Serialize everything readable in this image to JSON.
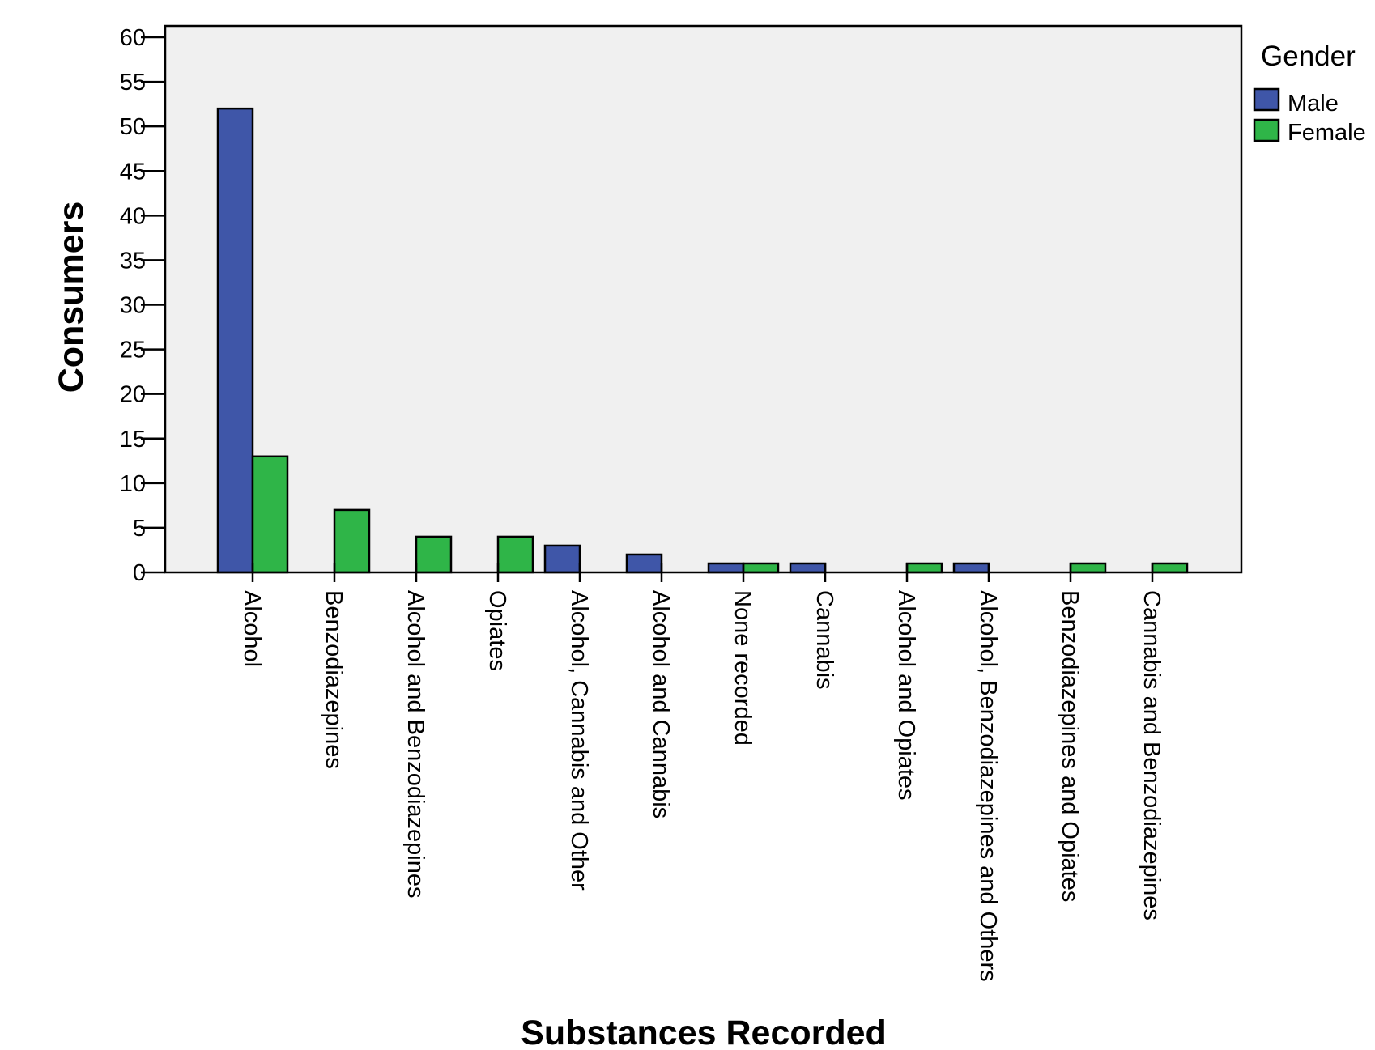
{
  "chart_data": {
    "type": "bar",
    "title": "",
    "xlabel": "Substances Recorded",
    "ylabel": "Consumers",
    "ylim": [
      0,
      60
    ],
    "yticks": [
      0,
      5,
      10,
      15,
      20,
      25,
      30,
      35,
      40,
      45,
      50,
      55,
      60
    ],
    "grid": false,
    "legend": {
      "title": "Gender",
      "position": "right"
    },
    "categories": [
      "Alcohol",
      "Benzodiazepines",
      "Alcohol and Benzodiazepines",
      "Opiates",
      "Alcohol, Cannabis and Other",
      "Alcohol and Cannabis",
      "None recorded",
      "Cannabis",
      "Alcohol and Opiates",
      "Alcohol, Benzodiazepines and Others",
      "Benzodiazepines and Opiates",
      "Cannabis and Benzodiazepines"
    ],
    "series": [
      {
        "name": "Male",
        "color": "#3f56a8",
        "values": [
          52,
          0,
          0,
          0,
          3,
          2,
          1,
          1,
          0,
          1,
          0,
          0
        ]
      },
      {
        "name": "Female",
        "color": "#2fb548",
        "values": [
          13,
          7,
          4,
          4,
          0,
          0,
          1,
          0,
          1,
          0,
          1,
          1
        ]
      }
    ],
    "plot_background": "#f0f0f0"
  }
}
